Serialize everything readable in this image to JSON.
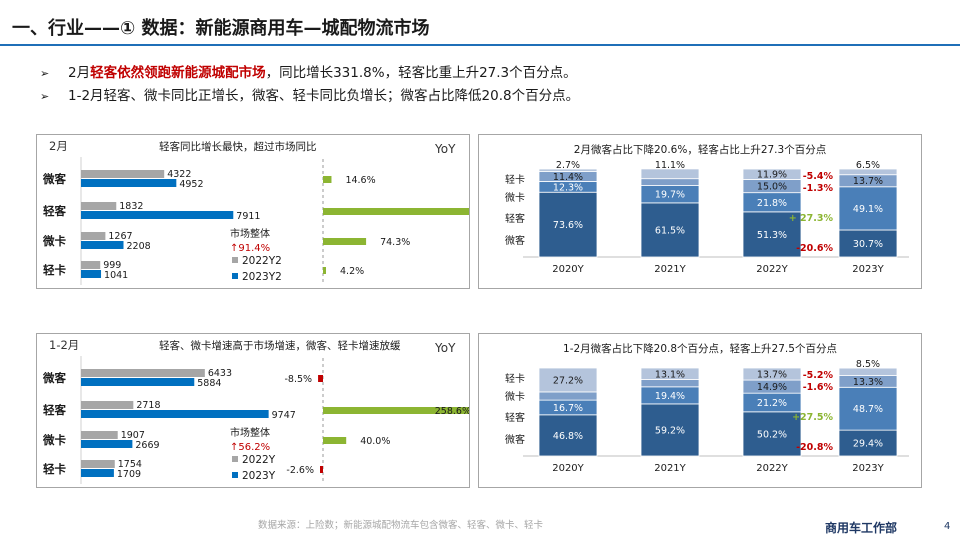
{
  "page": {
    "title": "一、行业——① 数据：新能源商用车—城配物流市场",
    "bullets": [
      {
        "marker": "➢",
        "pre": "2月",
        "highlight": "轻客依然领跑新能源城配市场",
        "post": "，同比增长331.8%，轻客比重上升27.3个百分点。"
      },
      {
        "marker": "➢",
        "pre": "1-2月轻客、微卡同比正增长，微客、轻卡同比负增长；微客占比降低20.8个百分点。",
        "highlight": "",
        "post": ""
      }
    ],
    "footer": "数据来源：上险数；新能源城配物流车包含微客、轻客、微卡、轻卡",
    "dept": "商用车工作部",
    "page_number": "4"
  },
  "chart_data": [
    {
      "type": "bar",
      "orientation": "horizontal",
      "period": "2月",
      "title": "轻客同比增长最快，超过市场同比",
      "categories": [
        "微客",
        "轻客",
        "微卡",
        "轻卡"
      ],
      "series": [
        {
          "name": "2022Y2",
          "values": [
            4322,
            1832,
            1267,
            999
          ]
        },
        {
          "name": "2023Y2",
          "values": [
            4952,
            7911,
            2208,
            1041
          ]
        }
      ],
      "market_label": "市场整体",
      "market_change": "↑91.4%",
      "yoy_label": "YoY",
      "yoy_values": [
        14.6,
        331.8,
        74.3,
        4.2
      ],
      "yoy_labels": [
        "14.6%",
        "331.8%",
        "74.3%",
        "4.2%"
      ],
      "colors": {
        "prev": "#a6a6a6",
        "curr": "#0070c0",
        "yoy_pos": "#8cb532",
        "yoy_neg": "#c00000"
      }
    },
    {
      "type": "bar",
      "stacked": true,
      "period": "2月",
      "title": "2月微客占比下降20.6%，轻客占比上升27.3个百分点",
      "categories": [
        "2020Y",
        "2021Y",
        "2022Y",
        "2023Y"
      ],
      "series": [
        {
          "name": "微客",
          "values": [
            73.6,
            61.5,
            51.3,
            30.7
          ]
        },
        {
          "name": "轻客",
          "values": [
            12.3,
            19.7,
            21.8,
            49.1
          ]
        },
        {
          "name": "微卡",
          "values": [
            11.4,
            7.8,
            15.0,
            13.7
          ]
        },
        {
          "name": "轻卡",
          "values": [
            2.7,
            11.1,
            11.9,
            6.5
          ]
        }
      ],
      "value_labels": [
        [
          "73.6%",
          "61.5%",
          "51.3%",
          "30.7%"
        ],
        [
          "12.3%",
          "19.7%",
          "21.8%",
          "49.1%"
        ],
        [
          "11.4%",
          "7.8%",
          "15.0%",
          "13.7%"
        ],
        [
          "2.7%",
          "11.1%",
          "11.9%",
          "6.5%"
        ]
      ],
      "changes": {
        "轻卡": "-5.4%",
        "微卡": "-1.3%",
        "轻客": "+ 27.3%",
        "微客": "-20.6%"
      },
      "ylim": [
        0,
        100
      ],
      "colors": [
        "#2e5d8f",
        "#4a7fb8",
        "#7f9fc9",
        "#b4c4dc"
      ]
    },
    {
      "type": "bar",
      "orientation": "horizontal",
      "period": "1-2月",
      "title": "轻客、微卡增速高于市场增速，微客、轻卡增速放缓",
      "categories": [
        "微客",
        "轻客",
        "微卡",
        "轻卡"
      ],
      "series": [
        {
          "name": "2022Y",
          "values": [
            6433,
            2718,
            1907,
            1754
          ]
        },
        {
          "name": "2023Y",
          "values": [
            5884,
            9747,
            2669,
            1709
          ]
        }
      ],
      "market_label": "市场整体",
      "market_change": "↑56.2%",
      "yoy_label": "YoY",
      "yoy_values": [
        -8.5,
        258.6,
        40.0,
        -2.6
      ],
      "yoy_labels": [
        "-8.5%",
        "258.6%",
        "40.0%",
        "-2.6%"
      ],
      "colors": {
        "prev": "#a6a6a6",
        "curr": "#0070c0",
        "yoy_pos": "#8cb532",
        "yoy_neg": "#c00000"
      }
    },
    {
      "type": "bar",
      "stacked": true,
      "period": "1-2月",
      "title": "1-2月微客占比下降20.8个百分点，轻客上升27.5个百分点",
      "categories": [
        "2020Y",
        "2021Y",
        "2022Y",
        "2023Y"
      ],
      "series": [
        {
          "name": "微客",
          "values": [
            46.8,
            59.2,
            50.2,
            29.4
          ]
        },
        {
          "name": "轻客",
          "values": [
            16.7,
            19.4,
            21.2,
            48.7
          ]
        },
        {
          "name": "微卡",
          "values": [
            9.3,
            8.3,
            14.9,
            13.3
          ]
        },
        {
          "name": "轻卡",
          "values": [
            27.2,
            13.1,
            13.7,
            8.5
          ]
        }
      ],
      "value_labels": [
        [
          "46.8%",
          "59.2%",
          "50.2%",
          "29.4%"
        ],
        [
          "16.7%",
          "19.4%",
          "21.2%",
          "48.7%"
        ],
        [
          "9.3%",
          "8.3%",
          "14.9%",
          "13.3%"
        ],
        [
          "27.2%",
          "13.1%",
          "13.7%",
          "8.5%"
        ]
      ],
      "changes": {
        "轻卡": "-5.2%",
        "微卡": "-1.6%",
        "轻客": "+27.5%",
        "微客": "-20.8%"
      },
      "ylim": [
        0,
        100
      ],
      "colors": [
        "#2e5d8f",
        "#4a7fb8",
        "#7f9fc9",
        "#b4c4dc"
      ]
    }
  ]
}
